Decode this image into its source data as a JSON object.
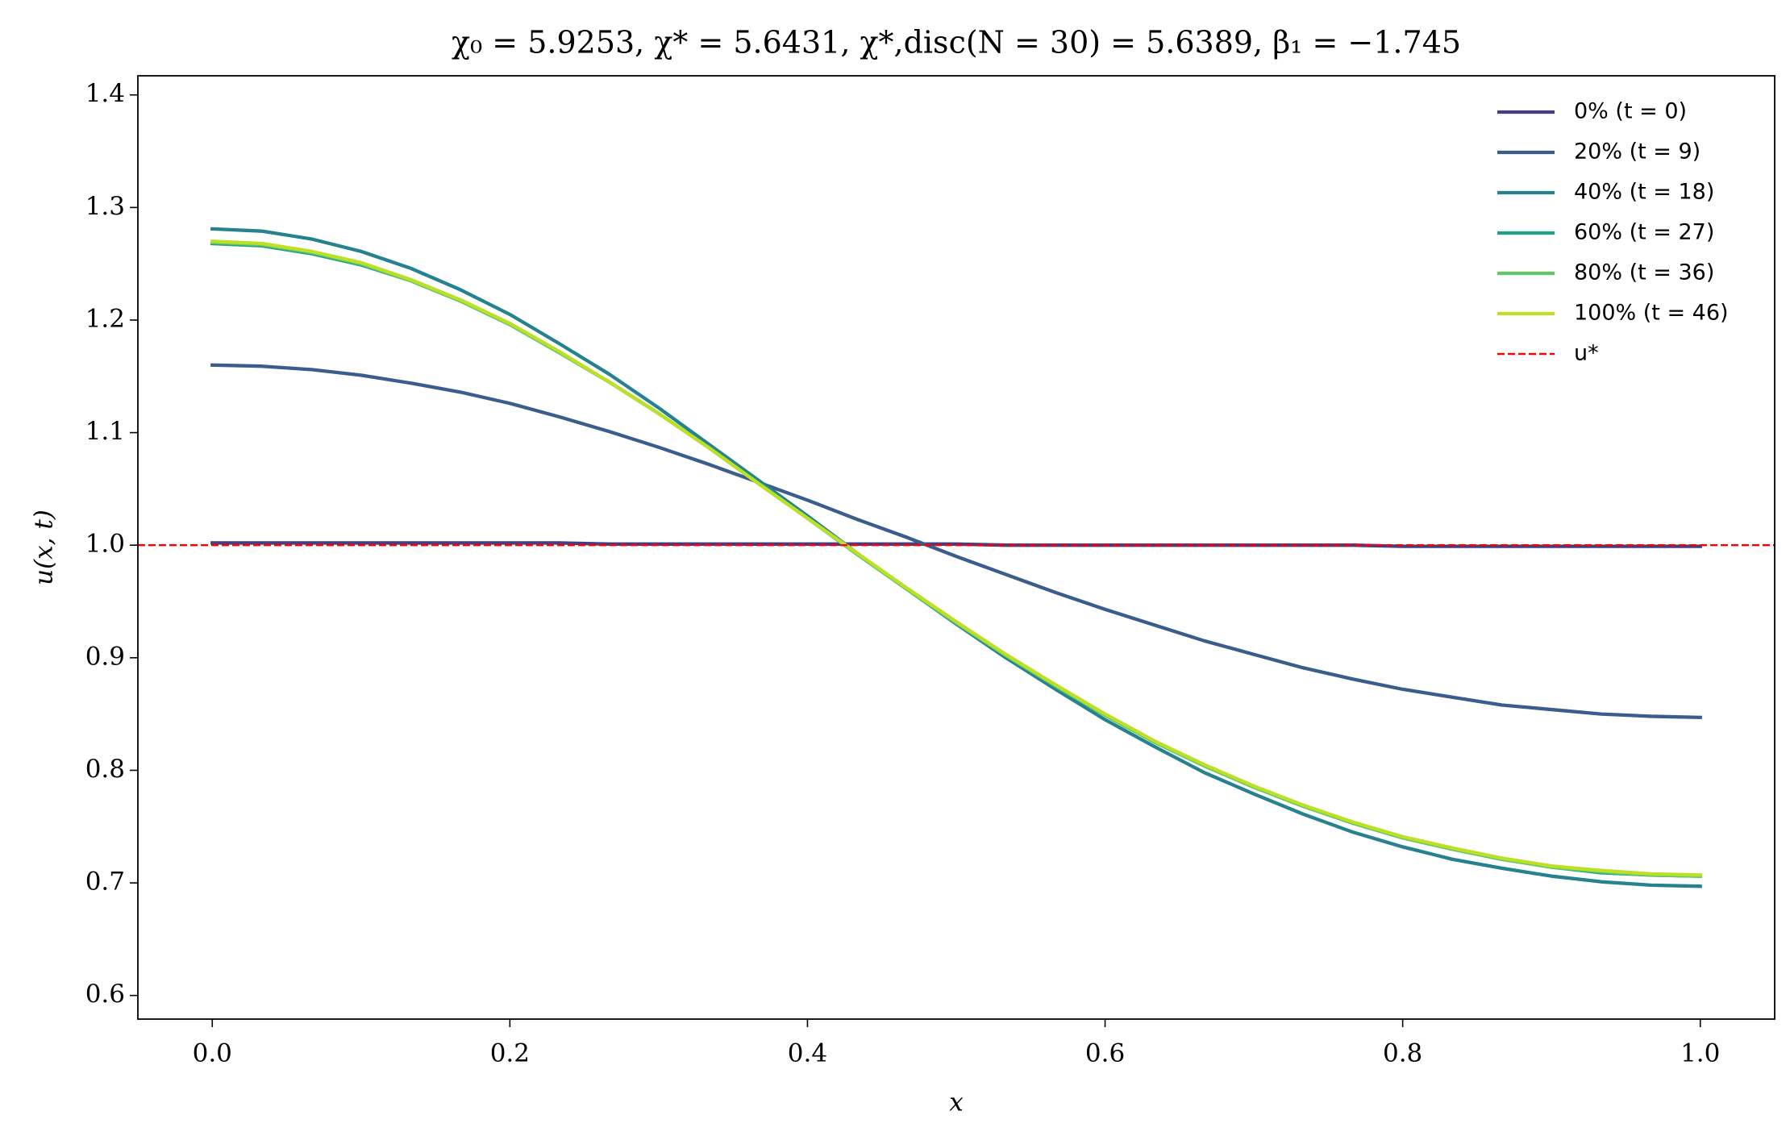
{
  "chart_data": {
    "type": "line",
    "title": "χ₀ = 5.9253,  χ* = 5.6431,  χ*,disc(N = 30) = 5.6389,  β₁ = −1.745",
    "x_label": "x",
    "y_label": "u(x, t)",
    "x": [
      0,
      0.0333,
      0.0667,
      0.1,
      0.1333,
      0.1667,
      0.2,
      0.2333,
      0.2667,
      0.3,
      0.3333,
      0.3667,
      0.4,
      0.4333,
      0.4667,
      0.5,
      0.5333,
      0.5667,
      0.6,
      0.6333,
      0.6667,
      0.7,
      0.7333,
      0.7667,
      0.8,
      0.8333,
      0.8667,
      0.9,
      0.9333,
      0.9667,
      1
    ],
    "series": [
      {
        "name": "0% (t = 0)",
        "color": "#433e85",
        "values": [
          1.002,
          1.002,
          1.002,
          1.002,
          1.002,
          1.002,
          1.002,
          1.002,
          1.001,
          1.001,
          1.001,
          1.001,
          1.001,
          1.001,
          1.001,
          1.001,
          1.0,
          1.0,
          1.0,
          1.0,
          1.0,
          1.0,
          1.0,
          1.0,
          0.999,
          0.999,
          0.999,
          0.999,
          0.999,
          0.999,
          0.999
        ]
      },
      {
        "name": "20% (t = 9)",
        "color": "#3b5d8d",
        "values": [
          1.16,
          1.159,
          1.156,
          1.151,
          1.144,
          1.136,
          1.126,
          1.114,
          1.101,
          1.087,
          1.072,
          1.056,
          1.04,
          1.023,
          1.007,
          0.99,
          0.974,
          0.958,
          0.943,
          0.929,
          0.915,
          0.903,
          0.891,
          0.881,
          0.872,
          0.865,
          0.858,
          0.854,
          0.85,
          0.848,
          0.847
        ]
      },
      {
        "name": "40% (t = 18)",
        "color": "#26828e",
        "values": [
          1.281,
          1.279,
          1.272,
          1.261,
          1.246,
          1.227,
          1.205,
          1.179,
          1.152,
          1.122,
          1.09,
          1.058,
          1.026,
          0.993,
          0.961,
          0.93,
          0.9,
          0.872,
          0.845,
          0.821,
          0.798,
          0.779,
          0.761,
          0.745,
          0.732,
          0.721,
          0.713,
          0.706,
          0.701,
          0.698,
          0.697
        ]
      },
      {
        "name": "60% (t = 27)",
        "color": "#1fa187",
        "values": [
          1.268,
          1.266,
          1.259,
          1.249,
          1.235,
          1.217,
          1.196,
          1.171,
          1.145,
          1.117,
          1.087,
          1.056,
          1.024,
          0.992,
          0.961,
          0.931,
          0.902,
          0.875,
          0.849,
          0.825,
          0.804,
          0.785,
          0.768,
          0.753,
          0.74,
          0.73,
          0.721,
          0.714,
          0.709,
          0.707,
          0.706
        ]
      },
      {
        "name": "80% (t = 36)",
        "color": "#5ec962",
        "values": [
          1.269,
          1.267,
          1.26,
          1.25,
          1.235,
          1.217,
          1.196,
          1.171,
          1.145,
          1.117,
          1.087,
          1.055,
          1.024,
          0.992,
          0.961,
          0.931,
          0.902,
          0.875,
          0.849,
          0.825,
          0.804,
          0.785,
          0.768,
          0.753,
          0.74,
          0.73,
          0.721,
          0.714,
          0.71,
          0.707,
          0.706
        ]
      },
      {
        "name": "100% (t = 46)",
        "color": "#bddf26",
        "values": [
          1.27,
          1.268,
          1.261,
          1.251,
          1.236,
          1.218,
          1.197,
          1.172,
          1.145,
          1.117,
          1.087,
          1.055,
          1.024,
          0.993,
          0.962,
          0.932,
          0.903,
          0.876,
          0.85,
          0.826,
          0.805,
          0.786,
          0.769,
          0.754,
          0.741,
          0.731,
          0.722,
          0.715,
          0.711,
          0.708,
          0.707
        ]
      }
    ],
    "reference_lines": [
      {
        "name": "u*",
        "value": 1,
        "color": "#ff0000",
        "style": "dashed"
      }
    ],
    "xlim": [
      -0.05,
      1.05
    ],
    "ylim": [
      0.579,
      1.417
    ],
    "xticks": [
      {
        "value": 0,
        "label": "0.0"
      },
      0.2,
      0.4,
      0.6,
      0.8,
      {
        "value": 1,
        "label": "1.0"
      }
    ],
    "yticks": [
      0.6,
      0.7,
      0.8,
      0.9,
      {
        "value": 1,
        "label": "1.0"
      },
      1.1,
      1.2,
      1.3,
      1.4
    ],
    "grid": false,
    "legend": "upper right"
  }
}
